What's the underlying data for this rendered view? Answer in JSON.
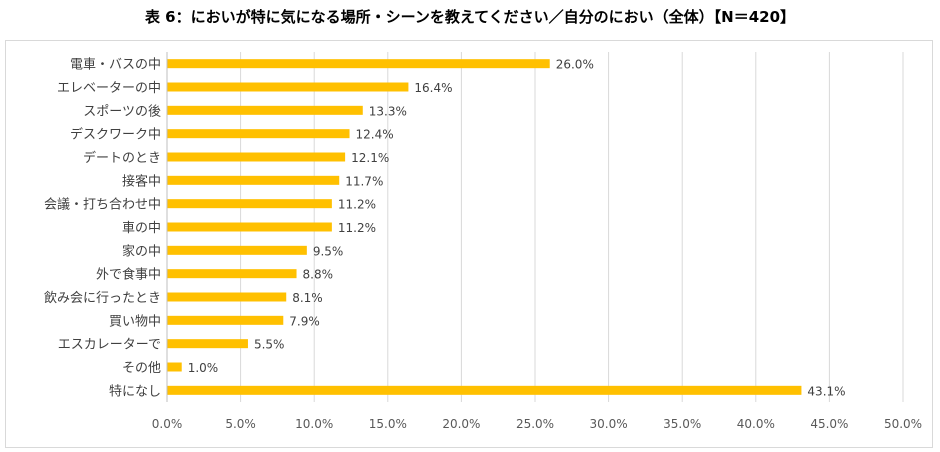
{
  "title": "表 6：においが特に気になる場所・シーンを教えてください／自分のにおい（全体）【N＝420】",
  "chart_data": {
    "type": "bar",
    "orientation": "horizontal",
    "title": "表 6：においが特に気になる場所・シーンを教えてください／自分のにおい（全体）【N＝420】",
    "categories": [
      "電車・バスの中",
      "エレベーターの中",
      "スポーツの後",
      "デスクワーク中",
      "デートのとき",
      "接客中",
      "会議・打ち合わせ中",
      "車の中",
      "家の中",
      "外で食事中",
      "飲み会に行ったとき",
      "買い物中",
      "エスカレーターで",
      "その他",
      "特になし"
    ],
    "values": [
      26.0,
      16.4,
      13.3,
      12.4,
      12.1,
      11.7,
      11.2,
      11.2,
      9.5,
      8.8,
      8.1,
      7.9,
      5.5,
      1.0,
      43.1
    ],
    "value_labels": [
      "26.0%",
      "16.4%",
      "13.3%",
      "12.4%",
      "12.1%",
      "11.7%",
      "11.2%",
      "11.2%",
      "9.5%",
      "8.8%",
      "8.1%",
      "7.9%",
      "5.5%",
      "1.0%",
      "43.1%"
    ],
    "x_ticks": [
      "0.0%",
      "5.0%",
      "10.0%",
      "15.0%",
      "20.0%",
      "25.0%",
      "30.0%",
      "35.0%",
      "40.0%",
      "45.0%",
      "50.0%"
    ],
    "xlim": [
      0,
      50
    ],
    "grid": true,
    "bar_color": "#FFC000"
  }
}
